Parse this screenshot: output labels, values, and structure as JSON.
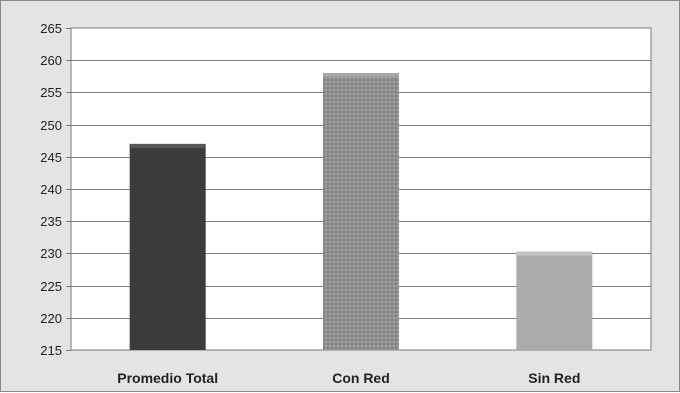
{
  "chart_data": {
    "type": "bar",
    "title": "",
    "xlabel": "",
    "ylabel": "",
    "categories": [
      "Promedio Total",
      "Con Red",
      "Sin Red"
    ],
    "values": [
      247,
      258,
      230.3
    ],
    "ylim": [
      215,
      265
    ],
    "yticks": [
      215,
      220,
      225,
      230,
      235,
      240,
      245,
      250,
      255,
      260,
      265
    ],
    "grid": true,
    "legend": "none",
    "bar_styles": [
      {
        "fill": "#3c3c3c",
        "top": "#5a5a5a",
        "pattern": "solid"
      },
      {
        "fill": "#8f8f8f",
        "top": "#a8a8a8",
        "pattern": "dotted"
      },
      {
        "fill": "#ababab",
        "top": "#c9c9c9",
        "pattern": "solid"
      }
    ]
  }
}
